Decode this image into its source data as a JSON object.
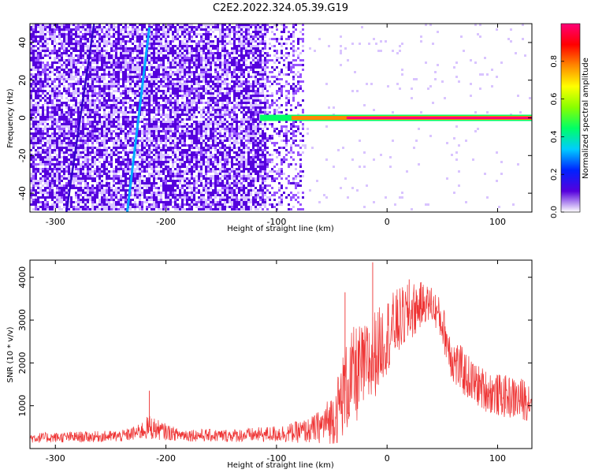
{
  "title": "C2E2.2022.324.05.39.G19",
  "chart_data": [
    {
      "type": "heatmap",
      "title": "C2E2.2022.324.05.39.G19",
      "xlabel": "Height of straight line (km)",
      "ylabel": "Frequency (Hz)",
      "xlim": [
        -323,
        131
      ],
      "ylim": [
        -50,
        50
      ],
      "xticks": [
        -300,
        -200,
        -100,
        0,
        100
      ],
      "yticks": [
        -40,
        -20,
        0,
        20,
        40
      ],
      "colorbar": {
        "label": "Normalized spectral amplitude",
        "range": [
          0,
          1
        ],
        "ticks": [
          "0.0",
          "0.2",
          "0.4",
          "0.6",
          "0.8"
        ],
        "colormap": [
          "#ffffff",
          "#5500dd",
          "#0022ff",
          "#00ccff",
          "#00ff66",
          "#88ff00",
          "#ffff00",
          "#ff8800",
          "#ff0000",
          "#ff0077"
        ]
      },
      "features": {
        "noise_region_x": [
          -323,
          -75
        ],
        "sparse_noise_x": [
          -110,
          131
        ],
        "rising_tone_track": {
          "x": [
            -235,
            -215
          ],
          "y": [
            -50,
            48
          ]
        },
        "faint_track": {
          "x": [
            -290,
            -265
          ],
          "y": [
            -50,
            50
          ]
        },
        "carrier_line": {
          "x": [
            -115,
            131
          ],
          "y": 0,
          "peak_amplitude": 0.95
        }
      },
      "grid": false,
      "legend": "right"
    },
    {
      "type": "line",
      "xlabel": "Height of straight line (km)",
      "ylabel": "SNR (10 * v/v)",
      "xlim": [
        -323,
        131
      ],
      "ylim": [
        0,
        4400
      ],
      "xticks": [
        -300,
        -200,
        -100,
        0,
        100
      ],
      "yticks": [
        1000,
        2000,
        3000,
        4000
      ],
      "color": "#ee3333",
      "series": [
        {
          "x": [
            -323,
            -300,
            -280,
            -260,
            -240,
            -225,
            -215,
            -205,
            -190,
            -170,
            -150,
            -130,
            -110,
            -90,
            -70,
            -60,
            -50,
            -45,
            -40,
            -35,
            -30,
            -25,
            -20,
            -15,
            -10,
            -5,
            0,
            5,
            10,
            15,
            20,
            25,
            30,
            35,
            40,
            45,
            50,
            55,
            60,
            70,
            80,
            90,
            100,
            110,
            120,
            131
          ],
          "y": [
            250,
            260,
            270,
            280,
            290,
            380,
            500,
            420,
            330,
            310,
            300,
            310,
            330,
            360,
            420,
            520,
            700,
            900,
            1250,
            1500,
            1650,
            1800,
            1900,
            2050,
            2250,
            2450,
            2650,
            2800,
            2950,
            3050,
            3150,
            3250,
            3350,
            3400,
            3350,
            3200,
            2900,
            2450,
            2050,
            1750,
            1500,
            1350,
            1250,
            1200,
            1150,
            1150
          ],
          "spread": [
            120,
            120,
            130,
            130,
            140,
            180,
            300,
            220,
            150,
            150,
            150,
            160,
            180,
            220,
            300,
            400,
            600,
            800,
            1000,
            1100,
            1200,
            1100,
            1000,
            1200,
            1000,
            900,
            900,
            850,
            800,
            750,
            700,
            650,
            550,
            450,
            400,
            450,
            500,
            550,
            600,
            550,
            500,
            500,
            500,
            500,
            500,
            500
          ]
        }
      ],
      "peaks": [
        {
          "x": -215,
          "y": 1350
        },
        {
          "x": -38,
          "y": 3650
        },
        {
          "x": -13,
          "y": 4350
        },
        {
          "x": 20,
          "y": 3950
        },
        {
          "x": 40,
          "y": 3750
        }
      ],
      "grid": false
    }
  ]
}
